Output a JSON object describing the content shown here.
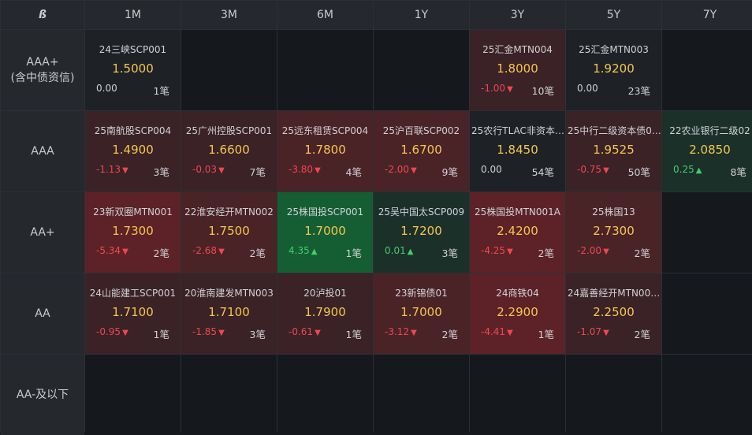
{
  "colors": {
    "header_bg": "#25282d",
    "grid_line": "#2c3036",
    "empty_cell": "#15191e",
    "price": "#f5c64f",
    "down": "#f0474f",
    "up": "#3ecf6a",
    "neutral_cell": "#1e2227",
    "red_light": "#3a2226",
    "red_mid": "#4a2327",
    "red_strong": "#5c2228",
    "green_dark": "#1c302a",
    "green_strong": "#155e34"
  },
  "header": {
    "corner_icon": "b-logo-icon",
    "corner_label": "ß",
    "tenors": [
      "1M",
      "3M",
      "6M",
      "1Y",
      "3Y",
      "5Y",
      "7Y"
    ]
  },
  "rows": [
    {
      "label": "AAA+\n(含中债资信)",
      "cells": [
        {
          "name": "24三峡SCP001",
          "price": "1.5000",
          "change": "0.00",
          "direction": "flat",
          "count": "1笔",
          "tone": "neutral_cell"
        },
        null,
        null,
        null,
        {
          "name": "25汇金MTN004",
          "price": "1.8000",
          "change": "-1.00",
          "direction": "down",
          "count": "10笔",
          "tone": "red_light"
        },
        {
          "name": "25汇金MTN003",
          "price": "1.9200",
          "change": "0.00",
          "direction": "flat",
          "count": "23笔",
          "tone": "neutral_cell"
        },
        null
      ]
    },
    {
      "label": "AAA",
      "cells": [
        {
          "name": "25南航股SCP004",
          "price": "1.4900",
          "change": "-1.13",
          "direction": "down",
          "count": "3笔",
          "tone": "red_light"
        },
        {
          "name": "25广州控股SCP001",
          "price": "1.6600",
          "change": "-0.03",
          "direction": "down",
          "count": "7笔",
          "tone": "red_light"
        },
        {
          "name": "25远东租赁SCP004",
          "price": "1.7800",
          "change": "-3.80",
          "direction": "down",
          "count": "4笔",
          "tone": "red_mid"
        },
        {
          "name": "25沪百联SCP002",
          "price": "1.6700",
          "change": "-2.00",
          "direction": "down",
          "count": "9笔",
          "tone": "red_mid"
        },
        {
          "name": "25农行TLAC非资本…",
          "price": "1.8450",
          "change": "0.00",
          "direction": "flat",
          "count": "54笔",
          "tone": "neutral_cell"
        },
        {
          "name": "25中行二级资本债0…",
          "price": "1.9525",
          "change": "-0.75",
          "direction": "down",
          "count": "50笔",
          "tone": "red_light"
        },
        {
          "name": "22农业银行二级02",
          "price": "2.0850",
          "change": "0.25",
          "direction": "up",
          "count": "8笔",
          "tone": "green_dark"
        }
      ]
    },
    {
      "label": "AA+",
      "cells": [
        {
          "name": "23新双圈MTN001",
          "price": "1.7300",
          "change": "-5.34",
          "direction": "down",
          "count": "2笔",
          "tone": "red_strong"
        },
        {
          "name": "22淮安经开MTN002",
          "price": "1.7500",
          "change": "-2.68",
          "direction": "down",
          "count": "2笔",
          "tone": "red_mid"
        },
        {
          "name": "25株国投SCP001",
          "price": "1.7000",
          "change": "4.35",
          "direction": "up",
          "count": "1笔",
          "tone": "green_strong"
        },
        {
          "name": "25吴中国太SCP009",
          "price": "1.7200",
          "change": "0.01",
          "direction": "up",
          "count": "3笔",
          "tone": "green_dark"
        },
        {
          "name": "25株国投MTN001A",
          "price": "2.4200",
          "change": "-4.25",
          "direction": "down",
          "count": "2笔",
          "tone": "red_strong"
        },
        {
          "name": "25株国13",
          "price": "2.7300",
          "change": "-2.00",
          "direction": "down",
          "count": "2笔",
          "tone": "red_mid"
        },
        null
      ]
    },
    {
      "label": "AA",
      "cells": [
        {
          "name": "24山能建工SCP001",
          "price": "1.7100",
          "change": "-0.95",
          "direction": "down",
          "count": "1笔",
          "tone": "red_light"
        },
        {
          "name": "20淮南建发MTN003",
          "price": "1.7100",
          "change": "-1.85",
          "direction": "down",
          "count": "3笔",
          "tone": "red_light"
        },
        {
          "name": "20泸投01",
          "price": "1.7900",
          "change": "-0.61",
          "direction": "down",
          "count": "1笔",
          "tone": "red_light"
        },
        {
          "name": "23新锦债01",
          "price": "1.7000",
          "change": "-3.12",
          "direction": "down",
          "count": "2笔",
          "tone": "red_mid"
        },
        {
          "name": "24商铁04",
          "price": "2.2900",
          "change": "-4.41",
          "direction": "down",
          "count": "1笔",
          "tone": "red_strong"
        },
        {
          "name": "24嘉善经开MTN00…",
          "price": "2.2500",
          "change": "-1.07",
          "direction": "down",
          "count": "2笔",
          "tone": "red_light"
        },
        null
      ]
    },
    {
      "label": "AA-及以下",
      "cells": [
        null,
        null,
        null,
        null,
        null,
        null,
        null
      ]
    }
  ]
}
